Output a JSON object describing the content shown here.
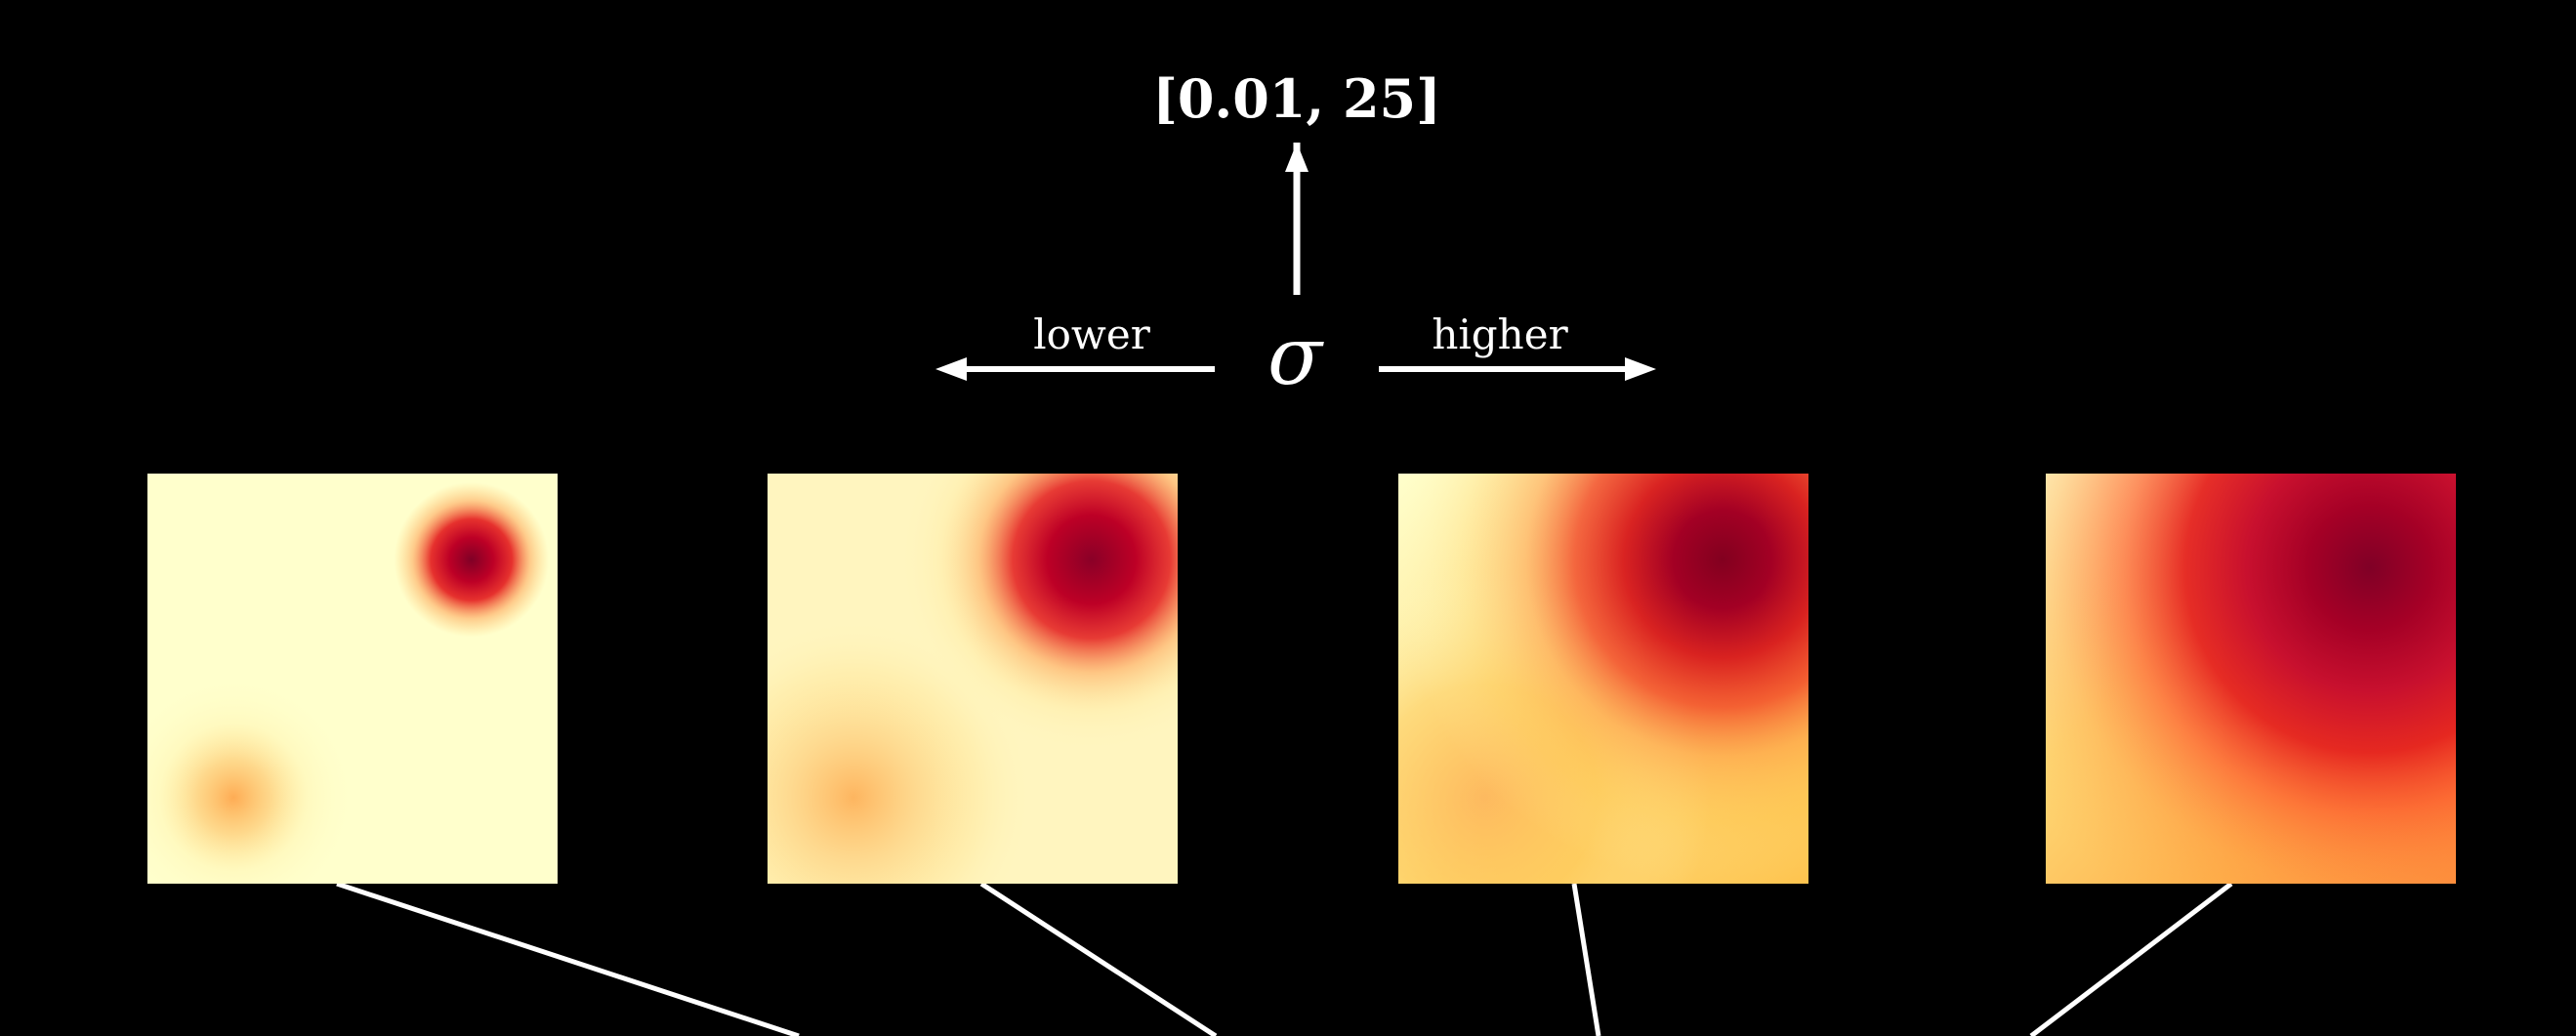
{
  "range_label": "[0.01, 25]",
  "parameter_symbol": "σ",
  "lower_label": "lower",
  "higher_label": "higher",
  "colors": {
    "background": "#000000",
    "foreground": "#ffffff",
    "heatmap_low": "#ffffcc",
    "heatmap_mid": "#fd8d3c",
    "heatmap_high": "#800026"
  },
  "colormap": "YlOrRd",
  "heatmap_panels": [
    {
      "name": "panel-1",
      "spread_level": 1
    },
    {
      "name": "panel-2",
      "spread_level": 2
    },
    {
      "name": "panel-3",
      "spread_level": 3
    },
    {
      "name": "panel-4",
      "spread_level": 4
    }
  ]
}
